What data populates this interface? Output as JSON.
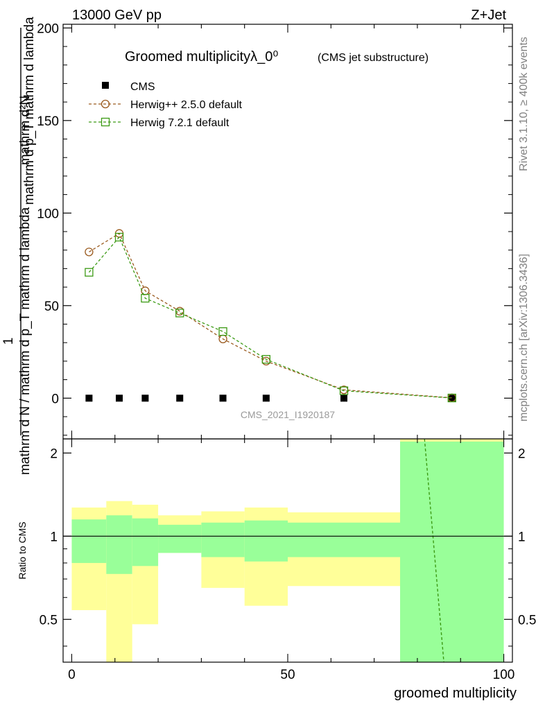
{
  "header": {
    "left": "13000 GeV pp",
    "right": "Z+Jet"
  },
  "side": {
    "rivet": "Rivet 3.1.10, ≥ 400k events",
    "mcplots": "mcplots.cern.ch [arXiv:1306.3436]"
  },
  "chart_data": [
    {
      "type": "line",
      "title": "Groomed multiplicityλ_0⁰",
      "subtitle": "(CMS jet substructure)",
      "watermark": "CMS_2021_I1920187",
      "ylabel_line1": "1",
      "ylabel_line2": "mathrm d N / mathrm d p_T mathrm d lambda",
      "ylabel_numerator": "mathrm d²N",
      "ylabel_line3": "mathrm d p_T mathrm d lambda",
      "ylim": [
        -22,
        202
      ],
      "xlim": [
        -2,
        102
      ],
      "yticks": [
        0,
        50,
        100,
        150,
        200
      ],
      "ytick_labels": [
        "0",
        "50",
        "100",
        "150",
        "200"
      ],
      "legend_position": "top-left",
      "legend": [
        "CMS",
        "Herwig++ 2.5.0 default",
        "Herwig 7.2.1 default"
      ],
      "x": [
        4,
        11,
        17,
        25,
        35,
        45,
        63,
        88
      ],
      "series": [
        {
          "name": "CMS",
          "color": "#000000",
          "marker": "square-filled",
          "values": [
            0,
            0,
            0,
            0,
            0,
            0,
            0,
            0
          ]
        },
        {
          "name": "Herwig++ 2.5.0 default",
          "color": "#9a5a1e",
          "marker": "circle-open",
          "values": [
            79,
            89,
            58,
            47,
            32,
            20,
            4.5,
            0.2
          ]
        },
        {
          "name": "Herwig 7.2.1 default",
          "color": "#3c9a14",
          "marker": "square-open",
          "values": [
            68,
            87,
            54,
            46,
            36,
            21,
            4,
            0.1
          ]
        }
      ]
    },
    {
      "type": "area",
      "ylabel": "Ratio to CMS",
      "xlabel": "groomed multiplicity",
      "ylim": [
        0.35,
        2.25
      ],
      "xlim": [
        -2,
        102
      ],
      "xticks": [
        0,
        50,
        100
      ],
      "xtick_labels": [
        "0",
        "50",
        "100"
      ],
      "yticks": [
        0.5,
        1,
        2
      ],
      "ytick_labels": [
        "0.5",
        "1",
        "2"
      ],
      "reference": 1,
      "bins": [
        {
          "x0": 0,
          "x1": 8,
          "inner": [
            0.8,
            1.15
          ],
          "outer": [
            0.54,
            1.27
          ]
        },
        {
          "x0": 8,
          "x1": 14,
          "inner": [
            0.73,
            1.19
          ],
          "outer": [
            0.3,
            1.34
          ]
        },
        {
          "x0": 14,
          "x1": 20,
          "inner": [
            0.78,
            1.16
          ],
          "outer": [
            0.48,
            1.3
          ]
        },
        {
          "x0": 20,
          "x1": 30,
          "inner": [
            0.87,
            1.1
          ],
          "outer": [
            0.87,
            1.19
          ]
        },
        {
          "x0": 30,
          "x1": 40,
          "inner": [
            0.84,
            1.12
          ],
          "outer": [
            0.65,
            1.23
          ]
        },
        {
          "x0": 40,
          "x1": 50,
          "inner": [
            0.81,
            1.14
          ],
          "outer": [
            0.56,
            1.27
          ]
        },
        {
          "x0": 50,
          "x1": 76,
          "inner": [
            0.84,
            1.12
          ],
          "outer": [
            0.66,
            1.22
          ]
        },
        {
          "x0": 76,
          "x1": 100,
          "inner": [
            0.3,
            2.2
          ],
          "outer": [
            0.3,
            2.3
          ]
        }
      ],
      "series": [
        {
          "name": "Herwig 7.2.1 default",
          "color": "#3c9a14",
          "points": [
            [
              81.5,
              2.4
            ],
            [
              86.5,
              0.3
            ]
          ]
        }
      ],
      "colors": {
        "inner": "#99ff99",
        "outer": "#ffff99"
      }
    }
  ]
}
